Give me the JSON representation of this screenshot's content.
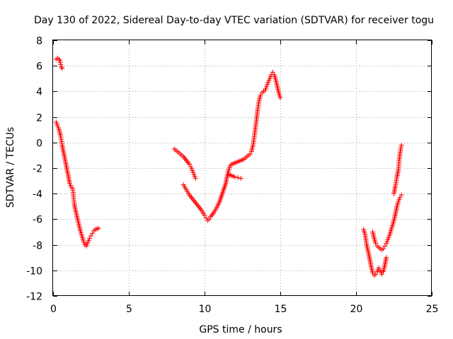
{
  "chart_data": {
    "type": "scatter",
    "title": "Day 130 of 2022, Sidereal Day-to-day VTEC variation (SDTVAR) for receiver togu",
    "xlabel": "GPS time / hours",
    "ylabel": "SDTVAR / TECUs",
    "xlim": [
      0,
      25
    ],
    "ylim": [
      -12,
      8
    ],
    "xticks": [
      "0",
      "5",
      "10",
      "15",
      "20",
      "25"
    ],
    "yticks": [
      "-12",
      "-10",
      "-8",
      "-6",
      "-4",
      "-2",
      "0",
      "2",
      "4",
      "6",
      "8"
    ],
    "grid": true,
    "marker": "+",
    "color": "#ff0000",
    "series": [
      {
        "points": [
          [
            0.2,
            6.5
          ],
          [
            0.3,
            6.6
          ],
          [
            0.4,
            6.5
          ],
          [
            0.45,
            6.4
          ],
          [
            0.5,
            6.1
          ],
          [
            0.55,
            5.9
          ],
          [
            0.6,
            5.8
          ]
        ]
      },
      {
        "points": [
          [
            0.2,
            1.6
          ],
          [
            0.3,
            1.3
          ],
          [
            0.4,
            1.0
          ],
          [
            0.5,
            0.5
          ],
          [
            0.6,
            -0.2
          ],
          [
            0.7,
            -0.8
          ],
          [
            0.8,
            -1.4
          ],
          [
            0.9,
            -2.0
          ],
          [
            1.0,
            -2.6
          ],
          [
            1.1,
            -3.2
          ],
          [
            1.2,
            -3.5
          ],
          [
            1.3,
            -3.6
          ],
          [
            1.35,
            -4.2
          ],
          [
            1.4,
            -4.8
          ],
          [
            1.5,
            -5.4
          ],
          [
            1.6,
            -5.9
          ],
          [
            1.7,
            -6.4
          ],
          [
            1.8,
            -6.9
          ],
          [
            1.9,
            -7.3
          ],
          [
            2.0,
            -7.7
          ],
          [
            2.1,
            -8.0
          ],
          [
            2.2,
            -8.1
          ],
          [
            2.3,
            -7.8
          ],
          [
            2.4,
            -7.5
          ],
          [
            2.5,
            -7.3
          ],
          [
            2.6,
            -7.1
          ],
          [
            2.7,
            -6.9
          ],
          [
            2.8,
            -6.8
          ],
          [
            2.9,
            -6.75
          ],
          [
            3.0,
            -6.7
          ]
        ]
      },
      {
        "points": [
          [
            8.0,
            -0.5
          ],
          [
            8.2,
            -0.7
          ],
          [
            8.4,
            -0.9
          ],
          [
            8.6,
            -1.1
          ],
          [
            8.8,
            -1.4
          ],
          [
            9.0,
            -1.7
          ],
          [
            9.1,
            -1.9
          ],
          [
            9.2,
            -2.2
          ],
          [
            9.3,
            -2.5
          ],
          [
            9.4,
            -2.8
          ]
        ]
      },
      {
        "points": [
          [
            8.6,
            -3.3
          ],
          [
            8.8,
            -3.7
          ],
          [
            9.0,
            -4.1
          ],
          [
            9.2,
            -4.4
          ],
          [
            9.4,
            -4.7
          ],
          [
            9.6,
            -5.0
          ],
          [
            9.8,
            -5.3
          ],
          [
            10.0,
            -5.7
          ],
          [
            10.1,
            -5.9
          ],
          [
            10.2,
            -6.1
          ],
          [
            10.3,
            -6.0
          ],
          [
            10.4,
            -5.8
          ],
          [
            10.6,
            -5.5
          ],
          [
            10.8,
            -5.1
          ],
          [
            11.0,
            -4.6
          ],
          [
            11.2,
            -3.9
          ],
          [
            11.4,
            -3.2
          ],
          [
            11.5,
            -2.6
          ],
          [
            11.6,
            -2.1
          ],
          [
            11.7,
            -1.8
          ],
          [
            11.8,
            -1.7
          ],
          [
            12.0,
            -1.6
          ],
          [
            12.2,
            -1.5
          ],
          [
            12.4,
            -1.4
          ],
          [
            12.6,
            -1.3
          ],
          [
            12.8,
            -1.1
          ],
          [
            13.0,
            -0.9
          ],
          [
            13.1,
            -0.7
          ],
          [
            13.2,
            -0.2
          ],
          [
            13.3,
            0.6
          ],
          [
            13.4,
            1.5
          ],
          [
            13.5,
            2.5
          ],
          [
            13.6,
            3.3
          ],
          [
            13.7,
            3.7
          ],
          [
            13.8,
            3.9
          ],
          [
            14.0,
            4.1
          ],
          [
            14.1,
            4.4
          ],
          [
            14.2,
            4.7
          ],
          [
            14.3,
            5.0
          ],
          [
            14.4,
            5.3
          ],
          [
            14.5,
            5.5
          ],
          [
            14.6,
            5.3
          ],
          [
            14.7,
            4.9
          ],
          [
            14.8,
            4.4
          ],
          [
            14.9,
            3.9
          ],
          [
            15.0,
            3.5
          ]
        ]
      },
      {
        "points": [
          [
            11.6,
            -2.5
          ],
          [
            11.8,
            -2.6
          ],
          [
            12.0,
            -2.7
          ],
          [
            12.2,
            -2.75
          ],
          [
            12.4,
            -2.8
          ]
        ]
      },
      {
        "points": [
          [
            20.5,
            -6.8
          ],
          [
            20.6,
            -7.2
          ],
          [
            20.65,
            -7.6
          ],
          [
            20.7,
            -8.0
          ],
          [
            20.8,
            -8.5
          ],
          [
            20.9,
            -9.1
          ],
          [
            21.0,
            -9.7
          ],
          [
            21.1,
            -10.2
          ],
          [
            21.2,
            -10.4
          ],
          [
            21.3,
            -10.3
          ],
          [
            21.4,
            -10.1
          ],
          [
            21.5,
            -9.8
          ],
          [
            21.6,
            -10.0
          ],
          [
            21.7,
            -10.3
          ],
          [
            21.8,
            -10.1
          ],
          [
            21.9,
            -9.6
          ],
          [
            22.0,
            -9.0
          ]
        ]
      },
      {
        "points": [
          [
            21.1,
            -7.0
          ],
          [
            21.2,
            -7.5
          ],
          [
            21.3,
            -7.9
          ],
          [
            21.4,
            -8.1
          ],
          [
            21.5,
            -8.2
          ],
          [
            21.6,
            -8.3
          ],
          [
            21.7,
            -8.4
          ],
          [
            21.8,
            -8.3
          ],
          [
            21.9,
            -8.1
          ],
          [
            22.0,
            -7.9
          ],
          [
            22.1,
            -7.6
          ],
          [
            22.2,
            -7.3
          ],
          [
            22.3,
            -6.9
          ],
          [
            22.4,
            -6.5
          ],
          [
            22.5,
            -6.1
          ],
          [
            22.6,
            -5.6
          ],
          [
            22.7,
            -5.0
          ],
          [
            22.8,
            -4.6
          ],
          [
            22.9,
            -4.3
          ],
          [
            23.0,
            -4.1
          ]
        ]
      },
      {
        "points": [
          [
            22.5,
            -4.0
          ],
          [
            22.6,
            -3.4
          ],
          [
            22.7,
            -2.7
          ],
          [
            22.8,
            -2.1
          ],
          [
            22.85,
            -1.4
          ],
          [
            22.9,
            -0.9
          ],
          [
            22.95,
            -0.5
          ],
          [
            23.0,
            -0.2
          ]
        ]
      }
    ]
  }
}
